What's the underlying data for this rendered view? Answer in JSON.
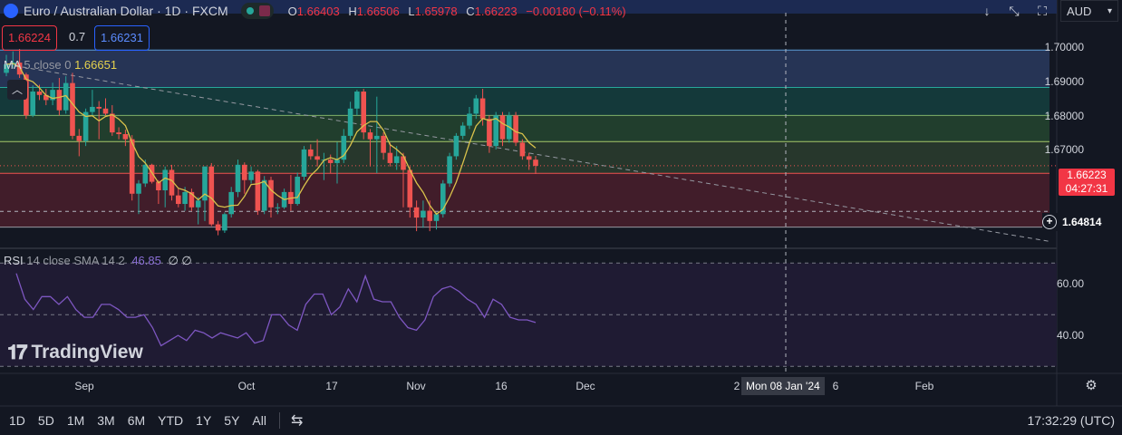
{
  "header": {
    "symbol_title": "Euro / Australian Dollar · 1D · FXCM",
    "o_label": "O",
    "o_value": "1.66403",
    "h_label": "H",
    "h_value": "1.66506",
    "l_label": "L",
    "l_value": "1.65978",
    "c_label": "C",
    "c_value": "1.66223",
    "change": "−0.00180 (−0.11%)",
    "currency": "AUD"
  },
  "quote": {
    "sell": "1.66224",
    "spread": "0.7",
    "buy": "1.66231"
  },
  "ma_indicator": {
    "label": "MA",
    "params": "5 close 0",
    "value": "1.66651"
  },
  "rsi_indicator": {
    "label": "RSI",
    "params": "14 close SMA 14 2",
    "value": "46.85",
    "extra": "∅ ∅"
  },
  "price_axis": {
    "ticks": [
      "1.70000",
      "1.69000",
      "1.68000",
      "1.67000"
    ],
    "last_price": "1.66223",
    "countdown": "04:27:31",
    "crosshair_price": "1.64814"
  },
  "rsi_axis": {
    "ticks": [
      "60.00",
      "40.00"
    ]
  },
  "time_axis": {
    "labels": [
      "Sep",
      "Oct",
      "17",
      "Nov",
      "16",
      "Dec",
      "2",
      "6",
      "Feb"
    ],
    "crosshair_date": "Mon 08 Jan '24"
  },
  "timeframes": [
    "1D",
    "5D",
    "1M",
    "3M",
    "6M",
    "YTD",
    "1Y",
    "5Y",
    "All"
  ],
  "clock": "17:32:29 (UTC)",
  "logo_text": "TradingView",
  "colors": {
    "up": "#26a69a",
    "down": "#ef5350",
    "ma": "#d9c24b",
    "rsi": "#7e57c2",
    "bg": "#131722"
  },
  "chart_data": {
    "type": "candlestick",
    "price_range": [
      1.6385,
      1.7045
    ],
    "fib_levels": [
      1.6962,
      1.6852,
      1.677,
      1.6693,
      1.66,
      1.6442
    ],
    "fib_colors": [
      "#2a3a5e",
      "#15403e",
      "#24452f",
      "#2c3d2e",
      "#4a1f2b"
    ],
    "trendline": {
      "start": [
        0,
        1.692
      ],
      "end": [
        88,
        1.64
      ]
    },
    "candles": [
      [
        1.6895,
        1.6948,
        1.6885,
        1.692
      ],
      [
        1.692,
        1.6958,
        1.691,
        1.6925
      ],
      [
        1.6925,
        1.6965,
        1.688,
        1.689
      ],
      [
        1.689,
        1.6895,
        1.676,
        1.677
      ],
      [
        1.677,
        1.6858,
        1.6765,
        1.684
      ],
      [
        1.684,
        1.686,
        1.6815,
        1.683
      ],
      [
        1.683,
        1.6848,
        1.68,
        1.6815
      ],
      [
        1.6815,
        1.6866,
        1.68,
        1.6845
      ],
      [
        1.6845,
        1.688,
        1.677,
        1.6785
      ],
      [
        1.6785,
        1.6885,
        1.6775,
        1.6865
      ],
      [
        1.6865,
        1.6895,
        1.67,
        1.671
      ],
      [
        1.671,
        1.673,
        1.665,
        1.6695
      ],
      [
        1.6695,
        1.679,
        1.668,
        1.678
      ],
      [
        1.678,
        1.6845,
        1.677,
        1.6795
      ],
      [
        1.6795,
        1.6812,
        1.67,
        1.679
      ],
      [
        1.679,
        1.682,
        1.677,
        1.6775
      ],
      [
        1.6775,
        1.68,
        1.671,
        1.672
      ],
      [
        1.672,
        1.6735,
        1.67,
        1.6715
      ],
      [
        1.6715,
        1.6728,
        1.668,
        1.67
      ],
      [
        1.67,
        1.6712,
        1.652,
        1.654
      ],
      [
        1.654,
        1.658,
        1.648,
        1.657
      ],
      [
        1.657,
        1.664,
        1.656,
        1.6625
      ],
      [
        1.6625,
        1.6628,
        1.657,
        1.6575
      ],
      [
        1.6575,
        1.658,
        1.651,
        1.655
      ],
      [
        1.655,
        1.662,
        1.65,
        1.661
      ],
      [
        1.661,
        1.6625,
        1.652,
        1.6535
      ],
      [
        1.6535,
        1.6555,
        1.65,
        1.651
      ],
      [
        1.651,
        1.656,
        1.649,
        1.6545
      ],
      [
        1.6545,
        1.6555,
        1.649,
        1.65
      ],
      [
        1.65,
        1.653,
        1.645,
        1.652
      ],
      [
        1.652,
        1.662,
        1.646,
        1.662
      ],
      [
        1.662,
        1.663,
        1.6445,
        1.645
      ],
      [
        1.645,
        1.646,
        1.6418,
        1.6432
      ],
      [
        1.6432,
        1.6485,
        1.6425,
        1.648
      ],
      [
        1.648,
        1.656,
        1.647,
        1.6545
      ],
      [
        1.6545,
        1.664,
        1.653,
        1.6625
      ],
      [
        1.6625,
        1.6632,
        1.654,
        1.658
      ],
      [
        1.658,
        1.662,
        1.657,
        1.6605
      ],
      [
        1.6605,
        1.661,
        1.6478,
        1.649
      ],
      [
        1.649,
        1.6592,
        1.648,
        1.658
      ],
      [
        1.658,
        1.659,
        1.647,
        1.65
      ],
      [
        1.65,
        1.6512,
        1.648,
        1.65
      ],
      [
        1.65,
        1.6555,
        1.6495,
        1.6545
      ],
      [
        1.6545,
        1.6595,
        1.649,
        1.651
      ],
      [
        1.651,
        1.6602,
        1.6505,
        1.659
      ],
      [
        1.659,
        1.668,
        1.658,
        1.667
      ],
      [
        1.667,
        1.6685,
        1.664,
        1.665
      ],
      [
        1.665,
        1.67,
        1.662,
        1.664
      ],
      [
        1.664,
        1.666,
        1.658,
        1.664
      ],
      [
        1.664,
        1.6655,
        1.66,
        1.663
      ],
      [
        1.663,
        1.6692,
        1.657,
        1.664
      ],
      [
        1.664,
        1.673,
        1.663,
        1.671
      ],
      [
        1.671,
        1.681,
        1.67,
        1.679
      ],
      [
        1.679,
        1.6845,
        1.677,
        1.684
      ],
      [
        1.684,
        1.6848,
        1.67,
        1.672
      ],
      [
        1.672,
        1.673,
        1.662,
        1.67
      ],
      [
        1.67,
        1.6825,
        1.66,
        1.671
      ],
      [
        1.671,
        1.672,
        1.664,
        1.666
      ],
      [
        1.666,
        1.669,
        1.662,
        1.663
      ],
      [
        1.663,
        1.668,
        1.661,
        1.665
      ],
      [
        1.665,
        1.666,
        1.65,
        1.661
      ],
      [
        1.661,
        1.662,
        1.647,
        1.65
      ],
      [
        1.65,
        1.652,
        1.643,
        1.647
      ],
      [
        1.647,
        1.652,
        1.644,
        1.649
      ],
      [
        1.649,
        1.652,
        1.643,
        1.646
      ],
      [
        1.646,
        1.6485,
        1.6435,
        1.648
      ],
      [
        1.648,
        1.658,
        1.647,
        1.657
      ],
      [
        1.657,
        1.666,
        1.656,
        1.665
      ],
      [
        1.665,
        1.6718,
        1.664,
        1.671
      ],
      [
        1.671,
        1.675,
        1.67,
        1.674
      ],
      [
        1.674,
        1.6795,
        1.673,
        1.6775
      ],
      [
        1.6775,
        1.683,
        1.676,
        1.682
      ],
      [
        1.682,
        1.6848,
        1.674,
        1.676
      ],
      [
        1.676,
        1.677,
        1.666,
        1.668
      ],
      [
        1.668,
        1.678,
        1.667,
        1.677
      ],
      [
        1.677,
        1.678,
        1.668,
        1.67
      ],
      [
        1.67,
        1.678,
        1.669,
        1.677
      ],
      [
        1.677,
        1.678,
        1.668,
        1.669
      ],
      [
        1.669,
        1.67,
        1.664,
        1.665
      ],
      [
        1.665,
        1.666,
        1.661,
        1.664
      ],
      [
        1.664,
        1.6651,
        1.6598,
        1.6622
      ]
    ],
    "rsi": [
      66,
      56,
      52,
      57,
      57,
      54,
      57,
      52,
      49,
      49,
      54,
      54,
      52,
      49,
      49,
      50,
      45,
      38,
      40,
      42,
      40,
      44,
      43,
      41,
      43,
      42,
      41,
      43,
      39,
      40,
      50,
      50,
      46,
      44,
      54,
      58,
      58,
      50,
      53,
      60,
      55,
      65,
      56,
      55,
      55,
      49,
      45,
      44,
      48,
      57,
      60,
      61,
      59,
      56,
      54,
      49,
      56,
      54,
      49,
      48,
      48,
      47
    ],
    "rsi_range": [
      28,
      75
    ],
    "rsi_bands": [
      70,
      50,
      30
    ],
    "crosshair_x_index": 143
  }
}
